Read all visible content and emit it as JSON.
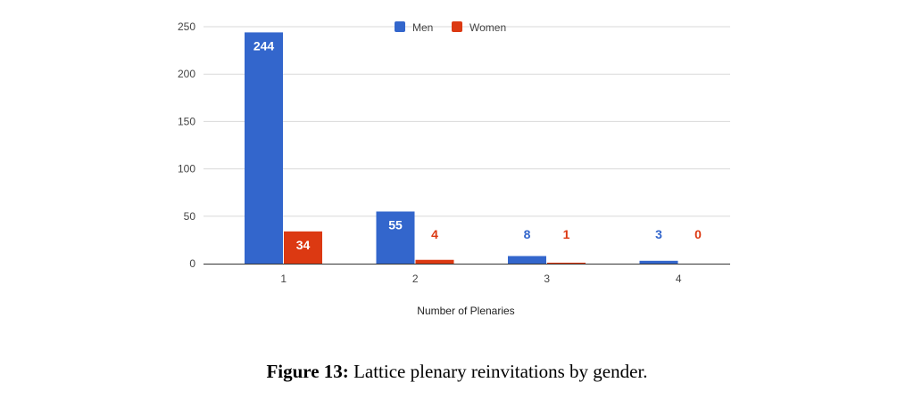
{
  "chart_data": {
    "type": "bar",
    "categories": [
      "1",
      "2",
      "3",
      "4"
    ],
    "series": [
      {
        "name": "Men",
        "values": [
          244,
          55,
          8,
          3
        ]
      },
      {
        "name": "Women",
        "values": [
          34,
          4,
          1,
          0
        ]
      }
    ],
    "title": "",
    "xlabel": "Number of Plenaries",
    "ylabel": "",
    "ylim": [
      0,
      250
    ],
    "yticks": [
      "0",
      "50",
      "100",
      "150",
      "200",
      "250"
    ],
    "grid": true,
    "legend": "top-center",
    "colors": {
      "Men": "#3366cc",
      "Women": "#dc3912"
    }
  },
  "caption": {
    "label": "Figure 13:",
    "text": "Lattice plenary reinvitations by gender."
  }
}
